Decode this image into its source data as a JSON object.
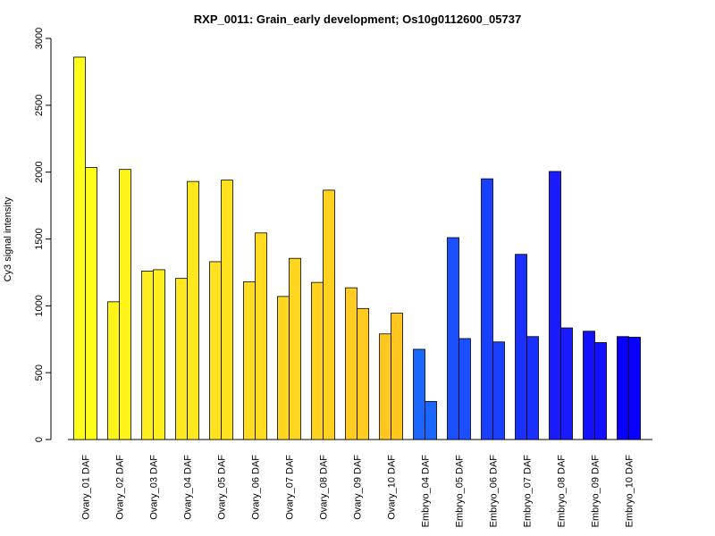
{
  "chart_data": {
    "type": "bar",
    "title": "RXP_0011: Grain_early development; Os10g0112600_05737",
    "xlabel": "",
    "ylabel": "Cy3 signal intensity",
    "ylim": [
      0,
      3000
    ],
    "y_ticks": [
      0,
      500,
      1000,
      1500,
      2000,
      2500,
      3000
    ],
    "grid": false,
    "categories": [
      "Ovary_01 DAF",
      "Ovary_02 DAF",
      "Ovary_03 DAF",
      "Ovary_04 DAF",
      "Ovary_05 DAF",
      "Ovary_06 DAF",
      "Ovary_07 DAF",
      "Ovary_08 DAF",
      "Ovary_09 DAF",
      "Ovary_10 DAF",
      "Embryo_04 DAF",
      "Embryo_05 DAF",
      "Embryo_06 DAF",
      "Embryo_07 DAF",
      "Embryo_08 DAF",
      "Embryo_09 DAF",
      "Embryo_10 DAF"
    ],
    "series": [
      {
        "values": [
          2860,
          1030,
          1260,
          1205,
          1330,
          1180,
          1070,
          1175,
          1135,
          790,
          675,
          1510,
          1950,
          1385,
          2005,
          810,
          770
        ]
      },
      {
        "values": [
          2035,
          2020,
          1270,
          1930,
          1940,
          1545,
          1355,
          1865,
          980,
          945,
          285,
          755,
          730,
          770,
          835,
          725,
          765
        ]
      }
    ],
    "colors": [
      "#ffff1a",
      "#fff41a",
      "#ffee1f",
      "#ffe820",
      "#ffe11f",
      "#ffdc1f",
      "#ffd61f",
      "#ffd11f",
      "#ffcc1f",
      "#ffc61f",
      "#1a66ff",
      "#1a50ff",
      "#1a40ff",
      "#1a30ff",
      "#1a1aff",
      "#1210ff",
      "#0a00ff"
    ]
  }
}
